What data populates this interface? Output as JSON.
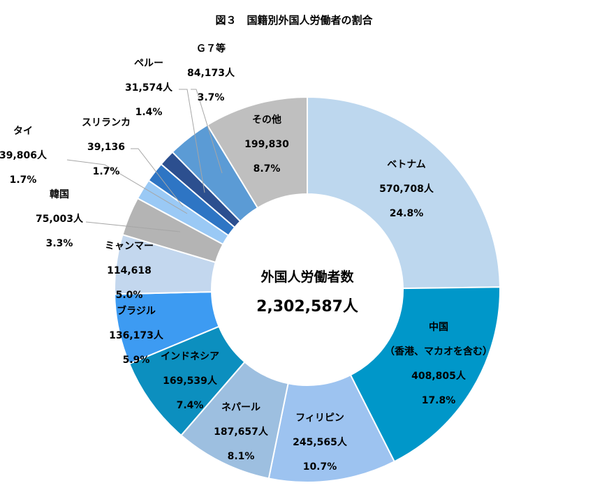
{
  "chart_data": {
    "type": "donut",
    "title": "図３　国籍別外国人労働者の割合",
    "center_label": "外国人労働者数",
    "center_total": "2,302,587人",
    "slices": [
      {
        "name": "ベトナム",
        "value": 570708,
        "value_label": "570,708人",
        "percent": 24.8,
        "percent_label": "24.8%",
        "color": "#bdd7ee"
      },
      {
        "name": "中国",
        "name_sub": "（香港、マカオを含む）",
        "value": 408805,
        "value_label": "408,805人",
        "percent": 17.8,
        "percent_label": "17.8%",
        "color": "#0097c9"
      },
      {
        "name": "フィリピン",
        "value": 245565,
        "value_label": "245,565人",
        "percent": 10.7,
        "percent_label": "10.7%",
        "color": "#9dc3f0"
      },
      {
        "name": "ネパール",
        "value": 187657,
        "value_label": "187,657人",
        "percent": 8.1,
        "percent_label": "8.1%",
        "color": "#9dbfe0"
      },
      {
        "name": "インドネシア",
        "value": 169539,
        "value_label": "169,539人",
        "percent": 7.4,
        "percent_label": "7.4%",
        "color": "#0c8fbf"
      },
      {
        "name": "ブラジル",
        "value": 136173,
        "value_label": "136,173人",
        "percent": 5.9,
        "percent_label": "5.9%",
        "color": "#3d9bf2"
      },
      {
        "name": "ミャンマー",
        "value": 114618,
        "value_label": "114,618",
        "percent": 5.0,
        "percent_label": "5.0%",
        "color": "#c3d7ee"
      },
      {
        "name": "韓国",
        "value": 75003,
        "value_label": "75,003人",
        "percent": 3.3,
        "percent_label": "3.3%",
        "color": "#b4b4b4"
      },
      {
        "name": "タイ",
        "value": 39806,
        "value_label": "39,806人",
        "percent": 1.7,
        "percent_label": "1.7%",
        "color": "#9ac9f5"
      },
      {
        "name": "スリランカ",
        "value": 39136,
        "value_label": "39,136",
        "percent": 1.7,
        "percent_label": "1.7%",
        "color": "#2e75c4"
      },
      {
        "name": "ペルー",
        "value": 31574,
        "value_label": "31,574人",
        "percent": 1.4,
        "percent_label": "1.4%",
        "color": "#2c4f8f"
      },
      {
        "name": "Ｇ７等",
        "value": 84173,
        "value_label": "84,173人",
        "percent": 3.7,
        "percent_label": "3.7%",
        "color": "#5b9bd5"
      },
      {
        "name": "その他",
        "value": 199830,
        "value_label": "199,830",
        "percent": 8.7,
        "percent_label": "8.7%",
        "color": "#bfbfbf"
      }
    ],
    "legend": "none",
    "grid": false
  }
}
